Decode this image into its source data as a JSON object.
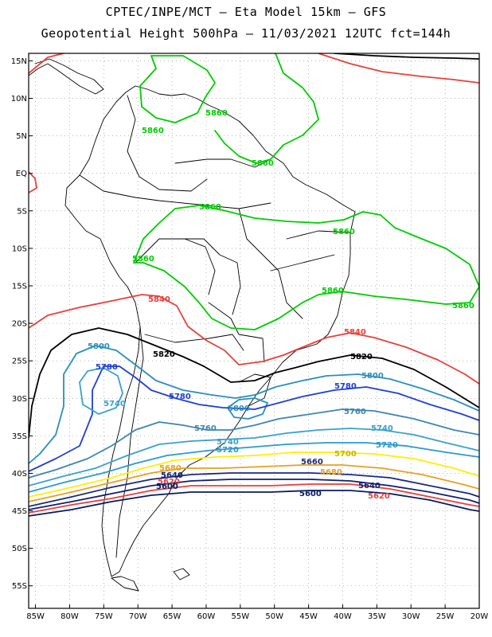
{
  "title_line1": "CPTEC/INPE/MCT  –   Eta Model 15km  –  GFS",
  "title_line2": "Geopotential Height 500hPa  –  11/03/2021  12UTC  fct=144h",
  "lat_ticks": [
    "15N",
    "10N",
    "5N",
    "EQ",
    "5S",
    "10S",
    "15S",
    "20S",
    "25S",
    "30S",
    "35S",
    "40S",
    "45S",
    "50S",
    "55S"
  ],
  "lat_values": [
    15,
    10,
    5,
    0,
    -5,
    -10,
    -15,
    -20,
    -25,
    -30,
    -35,
    -40,
    -45,
    -50,
    -55
  ],
  "lon_ticks": [
    "85W",
    "80W",
    "75W",
    "70W",
    "65W",
    "60W",
    "55W",
    "50W",
    "45W",
    "40W",
    "35W",
    "30W",
    "25W",
    "20W"
  ],
  "lon_values": [
    -85,
    -80,
    -75,
    -70,
    -65,
    -60,
    -55,
    -50,
    -45,
    -40,
    -35,
    -30,
    -25,
    -20
  ],
  "map_extent": {
    "lon": [
      -86,
      -20
    ],
    "lat": [
      -58,
      16
    ]
  },
  "contour_colors": {
    "5860": "#00cc00",
    "5840": "#e8403a",
    "5820": "#000000",
    "5800": "#2a8fbd",
    "5780": "#1f3fd6",
    "5760": "#3d86b0",
    "5740": "#3aa0cc",
    "5720": "#2a9ad0",
    "5700": "#ffee00",
    "5680": "#e8a020",
    "5660": "#1a2a80",
    "5640": "#102070",
    "5620": "#e8403a",
    "5600": "#0a1a60"
  },
  "contour_labels": [
    {
      "text": "5860",
      "color": "#00cc00"
    },
    {
      "text": "5860",
      "color": "#00cc00"
    },
    {
      "text": "5860",
      "color": "#00cc00"
    },
    {
      "text": "5860",
      "color": "#00cc00"
    },
    {
      "text": "5860",
      "color": "#00cc00"
    },
    {
      "text": "5860",
      "color": "#00cc00"
    },
    {
      "text": "5860",
      "color": "#00cc00"
    },
    {
      "text": "5860",
      "color": "#00cc00"
    },
    {
      "text": "5840",
      "color": "#e8403a"
    },
    {
      "text": "5840",
      "color": "#e8403a"
    },
    {
      "text": "5820",
      "color": "#000000"
    },
    {
      "text": "5820",
      "color": "#000000"
    },
    {
      "text": "5800",
      "color": "#2a8fbd"
    },
    {
      "text": "5800",
      "color": "#2a8fbd"
    },
    {
      "text": "5800",
      "color": "#2a8fbd"
    },
    {
      "text": "5780",
      "color": "#1f3fd6"
    },
    {
      "text": "5780",
      "color": "#1f3fd6"
    },
    {
      "text": "5780",
      "color": "#1f3fd6"
    },
    {
      "text": "5760",
      "color": "#3d86b0"
    },
    {
      "text": "5760",
      "color": "#3d86b0"
    },
    {
      "text": "5740",
      "color": "#3aa0cc"
    },
    {
      "text": "5740",
      "color": "#3aa0cc"
    },
    {
      "text": "5740",
      "color": "#3aa0cc"
    },
    {
      "text": "5720",
      "color": "#2a9ad0"
    },
    {
      "text": "5720",
      "color": "#2a9ad0"
    },
    {
      "text": "5700",
      "color": "#c8b400"
    },
    {
      "text": "5680",
      "color": "#e8a020"
    },
    {
      "text": "5680",
      "color": "#e8a020"
    },
    {
      "text": "5660",
      "color": "#1a2a80"
    },
    {
      "text": "5640",
      "color": "#102070"
    },
    {
      "text": "5640",
      "color": "#102070"
    },
    {
      "text": "5620",
      "color": "#e8403a"
    },
    {
      "text": "5620",
      "color": "#e8403a"
    },
    {
      "text": "5600",
      "color": "#0a1a60"
    },
    {
      "text": "5600",
      "color": "#0a1a60"
    }
  ]
}
